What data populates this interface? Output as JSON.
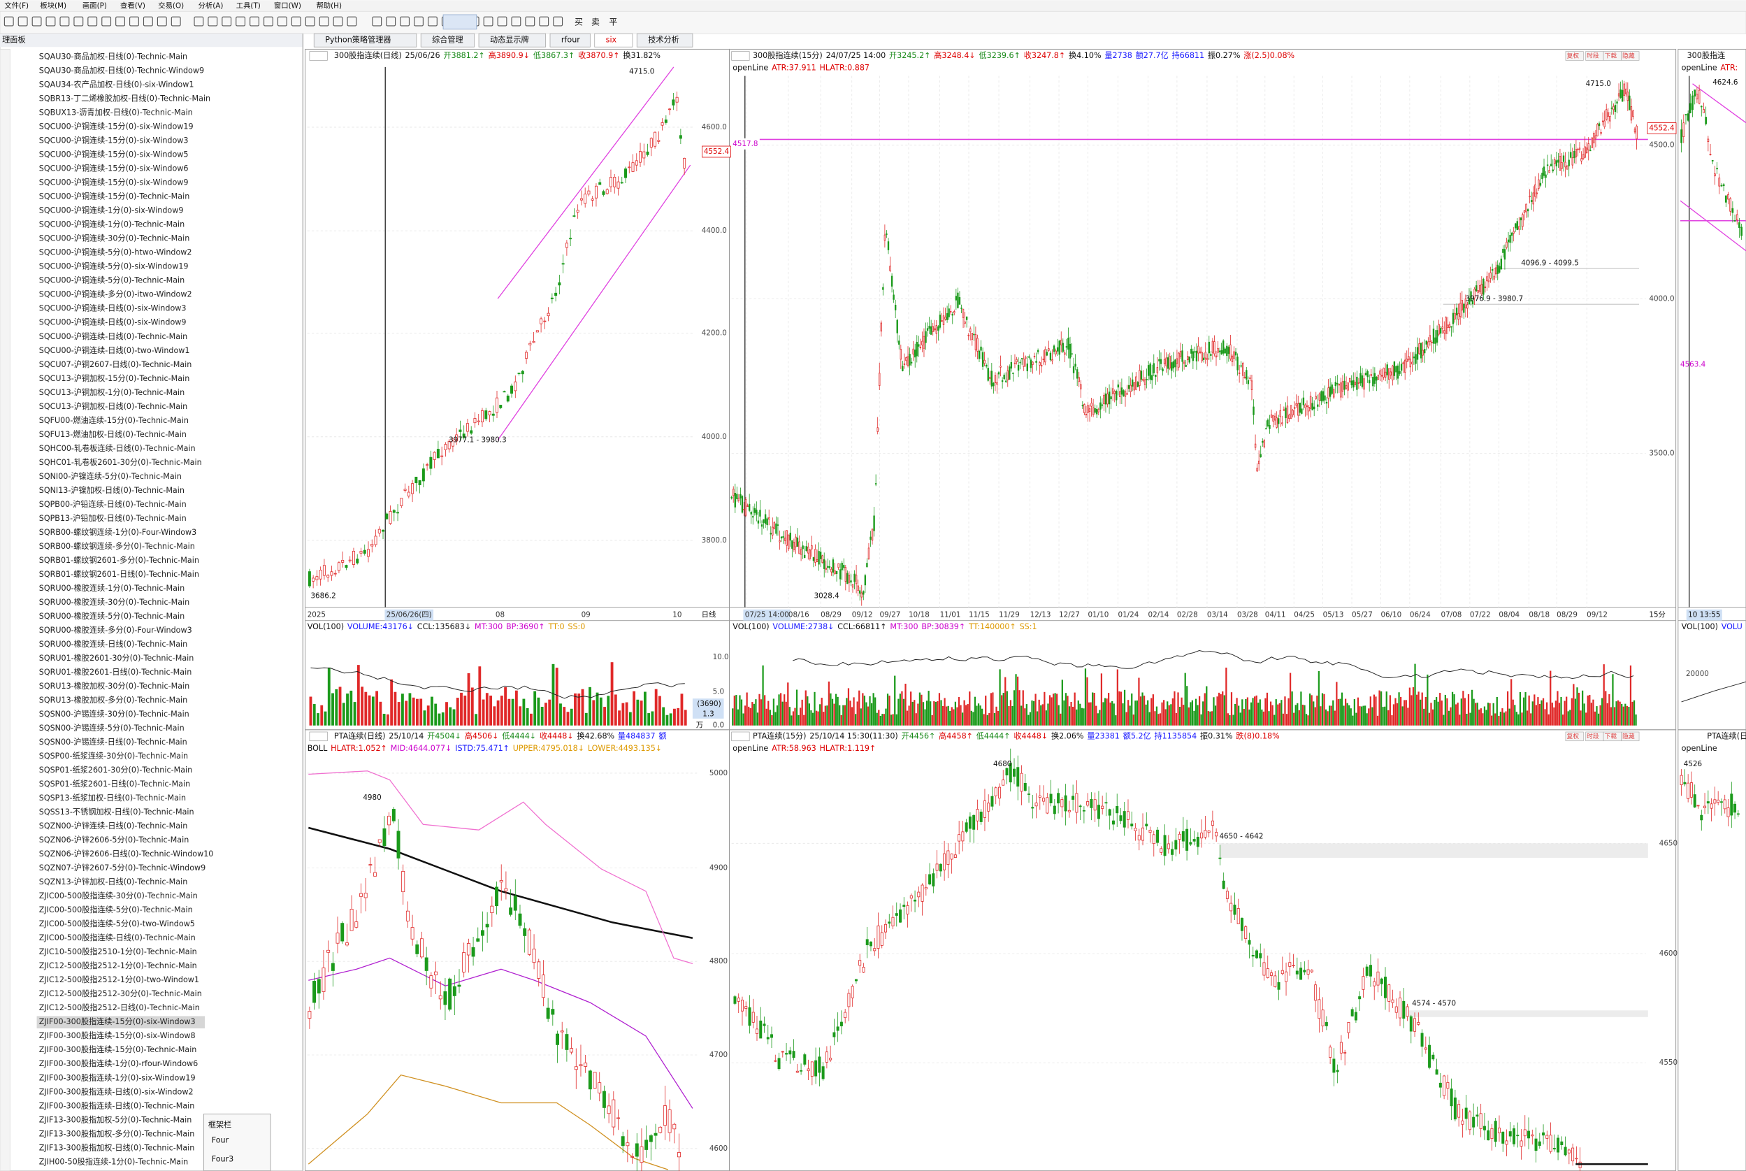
{
  "menu": [
    "文件(F)",
    "板块(M)",
    "画面(P)",
    "查看(V)",
    "交易(O)",
    "分析(A)",
    "工具(T)",
    "窗口(W)",
    "帮助(H)"
  ],
  "toolbar": {
    "trade": [
      "买",
      "卖",
      "平"
    ]
  },
  "left_panel": {
    "title": "理面板",
    "items": [
      "SQAU30-商品加权-日线(0)-Technic-Main",
      "SQAU30-商品加权-日线(0)-Technic-Window9",
      "SQAU34-农产品加权-日线(0)-six-Window1",
      "SQBR13-丁二烯橡胶加权-日线(0)-Technic-Main",
      "SQBUX13-沥青加权-日线(0)-Technic-Main",
      "SQCU00-沪铜连续-15分(0)-six-Window19",
      "SQCU00-沪铜连续-15分(0)-six-Window3",
      "SQCU00-沪铜连续-15分(0)-six-Window5",
      "SQCU00-沪铜连续-15分(0)-six-Window6",
      "SQCU00-沪铜连续-15分(0)-six-Window9",
      "SQCU00-沪铜连续-15分(0)-Technic-Main",
      "SQCU00-沪铜连续-1分(0)-six-Window9",
      "SQCU00-沪铜连续-1分(0)-Technic-Main",
      "SQCU00-沪铜连续-30分(0)-Technic-Main",
      "SQCU00-沪铜连续-5分(0)-htwo-Window2",
      "SQCU00-沪铜连续-5分(0)-six-Window19",
      "SQCU00-沪铜连续-5分(0)-Technic-Main",
      "SQCU00-沪铜连续-多分(0)-itwo-Window2",
      "SQCU00-沪铜连续-日线(0)-six-Window3",
      "SQCU00-沪铜连续-日线(0)-six-Window9",
      "SQCU00-沪铜连续-日线(0)-Technic-Main",
      "SQCU00-沪铜连续-日线(0)-two-Window1",
      "SQCU07-沪铜2607-日线(0)-Technic-Main",
      "SQCU13-沪铜加权-15分(0)-Technic-Main",
      "SQCU13-沪铜加权-1分(0)-Technic-Main",
      "SQCU13-沪铜加权-日线(0)-Technic-Main",
      "SQFU00-燃油连续-15分(0)-Technic-Main",
      "SQFU13-燃油加权-日线(0)-Technic-Main",
      "SQHC00-轧卷板连续-日线(0)-Technic-Main",
      "SQHC01-轧卷板2601-30分(0)-Technic-Main",
      "SQNI00-沪镍连续-5分(0)-Technic-Main",
      "SQNI13-沪镍加权-日线(0)-Technic-Main",
      "SQPB00-沪铅连续-日线(0)-Technic-Main",
      "SQPB13-沪铅加权-日线(0)-Technic-Main",
      "SQRB00-螺纹钢连续-1分(0)-Four-Window3",
      "SQRB00-螺纹钢连续-多分(0)-Technic-Main",
      "SQRB01-螺纹钢2601-多分(0)-Technic-Main",
      "SQRB01-螺纹钢2601-日线(0)-Technic-Main",
      "SQRU00-橡胶连续-1分(0)-Technic-Main",
      "SQRU00-橡胶连续-30分(0)-Technic-Main",
      "SQRU00-橡胶连续-5分(0)-Technic-Main",
      "SQRU00-橡胶连续-多分(0)-Four-Window3",
      "SQRU00-橡胶连续-日线(0)-Technic-Main",
      "SQRU01-橡胶2601-30分(0)-Technic-Main",
      "SQRU01-橡胶2601-日线(0)-Technic-Main",
      "SQRU13-橡胶加权-30分(0)-Technic-Main",
      "SQRU13-橡胶加权-多分(0)-Technic-Main",
      "SQSN00-沪锡连续-30分(0)-Technic-Main",
      "SQSN00-沪锡连续-5分(0)-Technic-Main",
      "SQSN00-沪锡连续-日线(0)-Technic-Main",
      "SQSP00-纸浆连续-30分(0)-Technic-Main",
      "SQSP01-纸浆2601-30分(0)-Technic-Main",
      "SQSP01-纸浆2601-日线(0)-Technic-Main",
      "SQSP13-纸浆加权-日线(0)-Technic-Main",
      "SQSS13-不锈钢加权-日线(0)-Technic-Main",
      "SQZN00-沪锌连续-日线(0)-Technic-Main",
      "SQZN06-沪锌2606-5分(0)-Technic-Main",
      "SQZN06-沪锌2606-日线(0)-Technic-Window10",
      "SQZN07-沪锌2607-5分(0)-Technic-Window9",
      "SQZN13-沪锌加权-日线(0)-Technic-Main",
      "ZJIC00-500股指连续-30分(0)-Technic-Main",
      "ZJIC00-500股指连续-5分(0)-Technic-Main",
      "ZJIC00-500股指连续-5分(0)-two-Window5",
      "ZJIC00-500股指连续-日线(0)-Technic-Main",
      "ZJIC10-500股指2510-1分(0)-Technic-Main",
      "ZJIC12-500股指2512-1分(0)-Technic-Main",
      "ZJIC12-500股指2512-1分(0)-two-Window1",
      "ZJIC12-500股指2512-30分(0)-Technic-Main",
      "ZJIC12-500股指2512-日线(0)-Technic-Main",
      "ZJIF00-300股指连续-15分(0)-six-Window3",
      "ZJIF00-300股指连续-15分(0)-six-Window8",
      "ZJIF00-300股指连续-15分(0)-Technic-Main",
      "ZJIF00-300股指连续-1分(0)-rfour-Window6",
      "ZJIF00-300股指连续-1分(0)-six-Window19",
      "ZJIF00-300股指连续-日线(0)-six-Window2",
      "ZJIF00-300股指连续-日线(0)-Technic-Main",
      "ZJIF13-300股指加权-5分(0)-Technic-Main",
      "ZJIF13-300股指加权-多分(0)-Technic-Main",
      "ZJIF13-300股指加权-日线(0)-Technic-Main",
      "ZJIH00-50股指连续-1分(0)-Technic-Main"
    ]
  },
  "frame_bar": {
    "title": "框架栏",
    "items": [
      "Four",
      "Four3"
    ]
  },
  "tabs": [
    "Python策略管理器",
    "综合管理",
    "动态显示牌",
    "rfour",
    "six",
    "技术分析"
  ],
  "windows": {
    "a": {
      "header": [
        "300股指连续(日线)",
        "25/06/26",
        "开3881.2↑",
        "高3890.9↓",
        "低3867.3↑",
        "收3870.9↑",
        "换31.82%"
      ],
      "y_labels": [
        "4600.0",
        "4400.0",
        "4200.0",
        "4000.0",
        "3800.0"
      ],
      "price_tag": "4552.4",
      "annotations": [
        "4715.0",
        "3977.1 - 3980.3",
        "3686.2"
      ],
      "x_labels": [
        "2025",
        "25/06/26(四)",
        "08",
        "09",
        "10"
      ],
      "period": "日线",
      "volume": {
        "header": [
          "VOL(100)",
          "VOLUME:43176↓",
          "CCL:135683↓",
          "MT:300",
          "BP:3690↑",
          "TT:0",
          "SS:0"
        ],
        "y_labels": [
          "10.0",
          "5.0",
          "0.0"
        ],
        "side": [
          "(3690)",
          "1.3",
          "万"
        ]
      }
    },
    "b": {
      "header": [
        "300股指连续(15分)",
        "24/07/25 14:00",
        "开3245.2↑",
        "高3248.4↓",
        "低3239.6↑",
        "收3247.8↑",
        "换4.10%",
        "量2738",
        "额27.7亿",
        "持66811",
        "振0.27%",
        "涨(2.5)0.08%"
      ],
      "buttons": [
        "复权",
        "时段",
        "下载",
        "隐藏"
      ],
      "indicator": [
        "openLine",
        "ATR:37.911",
        "HLATR:0.887"
      ],
      "y_labels": [
        "4500.0",
        "4000.0",
        "3500.0"
      ],
      "price_tag": "4552.4",
      "line_tag": "4517.8",
      "annotations": [
        "4715.0",
        "3028.4",
        "4096.9 - 4099.5",
        "3976.9 - 3980.7"
      ],
      "x_labels": [
        "07/25 14:00",
        "08/16",
        "08/29",
        "09/12",
        "09/27",
        "10/18",
        "11/01",
        "11/15",
        "11/29",
        "12/13",
        "12/27",
        "01/10",
        "01/24",
        "02/14",
        "02/28",
        "03/14",
        "03/28",
        "04/11",
        "04/25",
        "05/13",
        "05/27",
        "06/10",
        "06/24",
        "07/08",
        "07/22",
        "08/04",
        "08/18",
        "08/29",
        "09/12"
      ],
      "period": "15分",
      "volume": {
        "header": [
          "VOL(100)",
          "VOLUME:2738↓",
          "CCL:66811↑",
          "MT:300",
          "BP:30839↑",
          "TT:140000↑",
          "SS:1"
        ]
      }
    },
    "c": {
      "header": [
        "300股指连"
      ],
      "indicator": [
        "openLine",
        "ATR:"
      ],
      "annotations": [
        "4624.6",
        "4563.4"
      ],
      "x_label": "10 13:55",
      "volume": {
        "header": [
          "VOL(100)",
          "VOLU"
        ],
        "y_label": "20000"
      }
    },
    "d": {
      "header": [
        "PTA连续(日线)",
        "25/10/14",
        "开4504↓",
        "高4506↓",
        "低4444↓",
        "收4448↓",
        "换42.68%",
        "量484837",
        "额"
      ],
      "indicator": [
        "BOLL",
        "HLATR:1.052↑",
        "MID:4644.077↓",
        "ISTD:75.471↑",
        "UPPER:4795.018↓",
        "LOWER:4493.135↓"
      ],
      "annotations": [
        "4980"
      ],
      "y_labels": [
        "5000",
        "4900",
        "4800",
        "4700",
        "4600"
      ]
    },
    "e": {
      "header": [
        "PTA连续(15分)",
        "25/10/14 15:30(11:30)",
        "开4456↑",
        "高4458↑",
        "低4444↑",
        "收4448↓",
        "换2.06%",
        "量23381",
        "额5.2亿",
        "持1135854",
        "振0.31%",
        "跌(8)0.18%"
      ],
      "buttons": [
        "复权",
        "时段",
        "下载",
        "隐藏"
      ],
      "indicator": [
        "openLine",
        "ATR:58.963",
        "HLATR:1.119↑"
      ],
      "annotations": [
        "4680",
        "4650 - 4642",
        "4574 - 4570"
      ],
      "y_labels": [
        "4650",
        "4600",
        "4550"
      ]
    },
    "f": {
      "header": [
        "PTA连续(日"
      ],
      "indicator": [
        "openLine"
      ],
      "annotations": [
        "4526"
      ]
    }
  }
}
